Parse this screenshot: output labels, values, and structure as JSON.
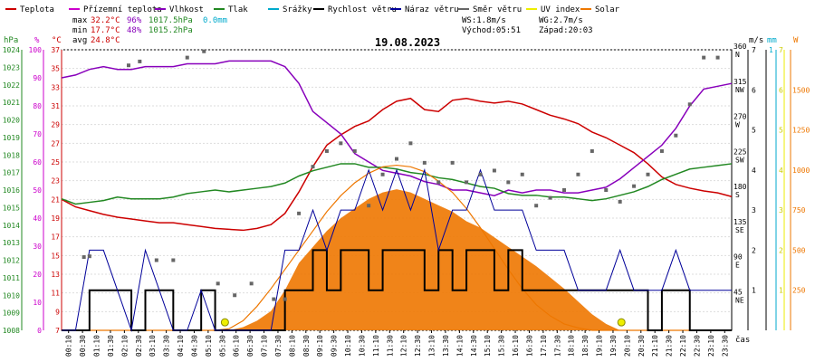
{
  "legend": [
    {
      "label": "Teplota",
      "color": "#cc0000"
    },
    {
      "label": "Přízemní teplota",
      "color": "#cc00cc"
    },
    {
      "label": "Vlhkost",
      "color": "#8800bb"
    },
    {
      "label": "Tlak",
      "color": "#228822"
    },
    {
      "label": "Srážky",
      "color": "#00aacc"
    },
    {
      "label": "Rychlost větru",
      "color": "#000000"
    },
    {
      "label": "Náraz větru",
      "color": "#000099"
    },
    {
      "label": "Směr větru",
      "color": "#666666"
    },
    {
      "label": "UV index",
      "color": "#eeee00"
    },
    {
      "label": "Solar",
      "color": "#ee7700"
    }
  ],
  "stats": {
    "max_label": "max",
    "max_temp": "32.2°C",
    "max_hum": "96%",
    "max_press": "1017.5hPa",
    "rain": "0.0mm",
    "min_label": "min",
    "min_temp": "17.7°C",
    "min_hum": "48%",
    "min_press": "1015.2hPa",
    "avg_label": "avg",
    "avg_temp": "24.8°C",
    "ws": "WS:1.8m/s",
    "wg": "WG:2.7m/s",
    "sunrise": "Východ:05:51",
    "sunset": "Západ:20:03",
    "date": "19.08.2023"
  },
  "axis_units": {
    "hpa": "hPa",
    "pct": "%",
    "degc": "°C",
    "ms": "m/s",
    "mm": "mm",
    "w": "W",
    "time": "čas"
  },
  "chart_data": {
    "type": "line",
    "title": "19.08.2023",
    "x_hours": [
      0,
      0.5,
      1,
      1.5,
      2,
      2.5,
      3,
      3.5,
      4,
      4.5,
      5,
      5.5,
      6,
      6.5,
      7,
      7.5,
      8,
      8.5,
      9,
      9.5,
      10,
      10.5,
      11,
      11.5,
      12,
      12.5,
      13,
      13.5,
      14,
      14.5,
      15,
      15.5,
      16,
      16.5,
      17,
      17.5,
      18,
      18.5,
      19,
      19.5,
      20,
      20.5,
      21,
      21.5,
      22,
      22.5,
      23,
      23.5,
      24
    ],
    "x_tick_labels": [
      "00:10",
      "00:30",
      "01:10",
      "01:30",
      "02:10",
      "02:30",
      "03:10",
      "03:30",
      "04:10",
      "04:30",
      "05:10",
      "05:30",
      "06:10",
      "06:30",
      "07:10",
      "07:30",
      "08:10",
      "08:30",
      "09:10",
      "09:30",
      "10:10",
      "10:30",
      "11:10",
      "11:30",
      "12:10",
      "12:30",
      "13:10",
      "13:30",
      "14:10",
      "14:30",
      "15:10",
      "15:30",
      "16:10",
      "16:30",
      "17:10",
      "17:30",
      "18:10",
      "18:30",
      "19:10",
      "19:30",
      "20:10",
      "20:30",
      "21:10",
      "21:30",
      "22:10",
      "22:30",
      "23:10",
      "23:30"
    ],
    "axes": {
      "pressure_hpa": {
        "min": 1008,
        "max": 1024,
        "ticks": [
          1008,
          1009,
          1010,
          1011,
          1012,
          1013,
          1014,
          1015,
          1016,
          1017,
          1018,
          1019,
          1020,
          1021,
          1022,
          1023,
          1024
        ]
      },
      "humidity_pct": {
        "min": 0,
        "max": 100,
        "ticks": [
          0,
          10,
          20,
          30,
          40,
          50,
          60,
          70,
          80,
          90,
          100
        ]
      },
      "temperature_c": {
        "min": 7,
        "max": 37,
        "ticks": [
          7,
          9,
          11,
          13,
          15,
          17,
          19,
          21,
          23,
          25,
          27,
          29,
          31,
          33,
          35,
          37
        ]
      },
      "wind_dir_deg": {
        "min": 0,
        "max": 360,
        "ticks": [
          45,
          90,
          135,
          180,
          225,
          270,
          315,
          360
        ],
        "tick_names": [
          "NE",
          "E",
          "SE",
          "S",
          "SW",
          "W",
          "NW",
          "N"
        ]
      },
      "wind_speed_ms": {
        "min": 0,
        "max": 7,
        "ticks": [
          1,
          2,
          3,
          4,
          5,
          6,
          7
        ]
      },
      "rain_mm": {
        "min": 0,
        "max": 1,
        "ticks": [
          1
        ]
      },
      "uv_index": {
        "min": 0,
        "max": 7,
        "ticks": [
          1,
          2,
          3,
          4,
          5,
          6,
          7
        ]
      },
      "solar_w": {
        "min": 0,
        "max": 1750,
        "ticks": [
          250,
          500,
          750,
          1000,
          1250,
          1500
        ]
      }
    },
    "series": [
      {
        "name": "Teplota",
        "color": "#cc0000",
        "axis": "temperature_c",
        "values": [
          21.0,
          20.2,
          19.8,
          19.4,
          19.1,
          18.9,
          18.7,
          18.5,
          18.5,
          18.3,
          18.1,
          17.9,
          17.8,
          17.7,
          17.9,
          18.3,
          19.5,
          21.8,
          24.5,
          26.8,
          27.9,
          28.8,
          29.4,
          30.6,
          31.5,
          31.8,
          30.6,
          30.4,
          31.6,
          31.8,
          31.5,
          31.3,
          31.5,
          31.2,
          30.6,
          30.0,
          29.6,
          29.1,
          28.2,
          27.6,
          26.8,
          26.0,
          24.8,
          23.4,
          22.6,
          22.2,
          21.9,
          21.7,
          21.3
        ]
      },
      {
        "name": "Vlhkost",
        "color": "#8800bb",
        "axis": "humidity_pct",
        "values": [
          90,
          91,
          93,
          94,
          93,
          93,
          94,
          94,
          94,
          95,
          95,
          95,
          96,
          96,
          96,
          96,
          94,
          88,
          78,
          74,
          70,
          63,
          60,
          57,
          56,
          55,
          53,
          52,
          50,
          50,
          49,
          48,
          50,
          49,
          50,
          50,
          49,
          49,
          50,
          51,
          54,
          58,
          62,
          66,
          72,
          80,
          86,
          87,
          88
        ]
      },
      {
        "name": "Tlak",
        "color": "#228822",
        "axis": "pressure_hpa",
        "values": [
          1015.5,
          1015.2,
          1015.3,
          1015.4,
          1015.6,
          1015.5,
          1015.5,
          1015.5,
          1015.6,
          1015.8,
          1015.9,
          1016.0,
          1015.9,
          1016.0,
          1016.1,
          1016.2,
          1016.4,
          1016.8,
          1017.1,
          1017.3,
          1017.5,
          1017.5,
          1017.3,
          1017.3,
          1017.2,
          1017.0,
          1016.9,
          1016.7,
          1016.6,
          1016.4,
          1016.2,
          1016.1,
          1015.8,
          1015.7,
          1015.7,
          1015.6,
          1015.6,
          1015.5,
          1015.4,
          1015.5,
          1015.7,
          1015.9,
          1016.2,
          1016.6,
          1016.9,
          1017.2,
          1017.3,
          1017.4,
          1017.5
        ]
      },
      {
        "name": "Solar",
        "color": "#ee7700",
        "axis": "solar_w",
        "style": "area",
        "values": [
          0,
          0,
          0,
          0,
          0,
          0,
          0,
          0,
          0,
          0,
          0,
          0,
          0,
          20,
          60,
          120,
          250,
          420,
          520,
          620,
          700,
          760,
          820,
          860,
          880,
          860,
          820,
          780,
          740,
          680,
          640,
          580,
          520,
          460,
          400,
          330,
          260,
          180,
          100,
          40,
          0,
          0,
          0,
          0,
          0,
          0,
          0,
          0,
          0
        ]
      },
      {
        "name": "Solar",
        "color": "#ee7700",
        "axis": "solar_w",
        "style": "curve",
        "values": [
          0,
          0,
          0,
          0,
          0,
          0,
          0,
          0,
          0,
          0,
          0,
          0,
          10,
          60,
          150,
          260,
          380,
          500,
          620,
          740,
          840,
          920,
          980,
          1020,
          1030,
          1020,
          990,
          930,
          860,
          760,
          640,
          510,
          380,
          260,
          160,
          90,
          40,
          15,
          0,
          0,
          0,
          0,
          0,
          0,
          0,
          0,
          0,
          0,
          0
        ]
      },
      {
        "name": "Rychlost větru",
        "color": "#000000",
        "axis": "wind_speed_ms",
        "style": "step",
        "values": [
          0,
          0,
          1,
          1,
          1,
          0,
          1,
          1,
          0,
          0,
          1,
          0,
          0,
          0,
          0,
          0,
          1,
          1,
          2,
          1,
          2,
          2,
          1,
          2,
          2,
          2,
          1,
          2,
          1,
          2,
          2,
          1,
          2,
          1,
          1,
          1,
          1,
          1,
          1,
          1,
          1,
          1,
          0,
          1,
          1,
          0,
          0,
          0,
          0
        ]
      },
      {
        "name": "Náraz větru",
        "color": "#000099",
        "axis": "wind_speed_ms",
        "values": [
          0,
          0,
          2,
          2,
          1,
          0,
          2,
          1,
          0,
          0,
          1,
          0,
          0,
          0,
          0,
          0,
          2,
          2,
          3,
          2,
          3,
          3,
          4,
          3,
          4,
          3,
          4,
          2,
          3,
          3,
          4,
          3,
          3,
          3,
          2,
          2,
          2,
          1,
          1,
          1,
          2,
          1,
          1,
          1,
          2,
          1,
          1,
          1,
          1
        ]
      },
      {
        "name": "Směr větru",
        "color": "#666666",
        "axis": "wind_dir_deg",
        "style": "points",
        "points": [
          [
            0.8,
            94
          ],
          [
            1.0,
            95
          ],
          [
            2.4,
            340
          ],
          [
            2.8,
            345
          ],
          [
            3.4,
            90
          ],
          [
            4.0,
            90
          ],
          [
            4.5,
            350
          ],
          [
            5.1,
            358
          ],
          [
            5.6,
            60
          ],
          [
            6.2,
            45
          ],
          [
            6.8,
            60
          ],
          [
            7.6,
            40
          ],
          [
            8.0,
            40
          ],
          [
            8.5,
            150
          ],
          [
            9.0,
            210
          ],
          [
            9.5,
            230
          ],
          [
            10.0,
            240
          ],
          [
            10.5,
            230
          ],
          [
            11.0,
            160
          ],
          [
            11.5,
            200
          ],
          [
            12.0,
            220
          ],
          [
            12.5,
            240
          ],
          [
            13.0,
            215
          ],
          [
            13.5,
            190
          ],
          [
            14.0,
            215
          ],
          [
            14.5,
            190
          ],
          [
            15.0,
            200
          ],
          [
            15.5,
            205
          ],
          [
            16.0,
            190
          ],
          [
            16.5,
            200
          ],
          [
            17.0,
            160
          ],
          [
            17.5,
            170
          ],
          [
            18.0,
            180
          ],
          [
            18.5,
            200
          ],
          [
            19.0,
            230
          ],
          [
            19.5,
            180
          ],
          [
            20.0,
            165
          ],
          [
            20.5,
            185
          ],
          [
            21.0,
            200
          ],
          [
            21.5,
            230
          ],
          [
            22.0,
            250
          ],
          [
            22.5,
            290
          ],
          [
            23.0,
            350
          ],
          [
            23.5,
            350
          ]
        ]
      },
      {
        "name": "UV index",
        "color": "#eeee00",
        "axis": "uv_index",
        "style": "points",
        "points": [
          [
            5.85,
            0.2
          ],
          [
            20.05,
            0.2
          ]
        ]
      }
    ]
  }
}
